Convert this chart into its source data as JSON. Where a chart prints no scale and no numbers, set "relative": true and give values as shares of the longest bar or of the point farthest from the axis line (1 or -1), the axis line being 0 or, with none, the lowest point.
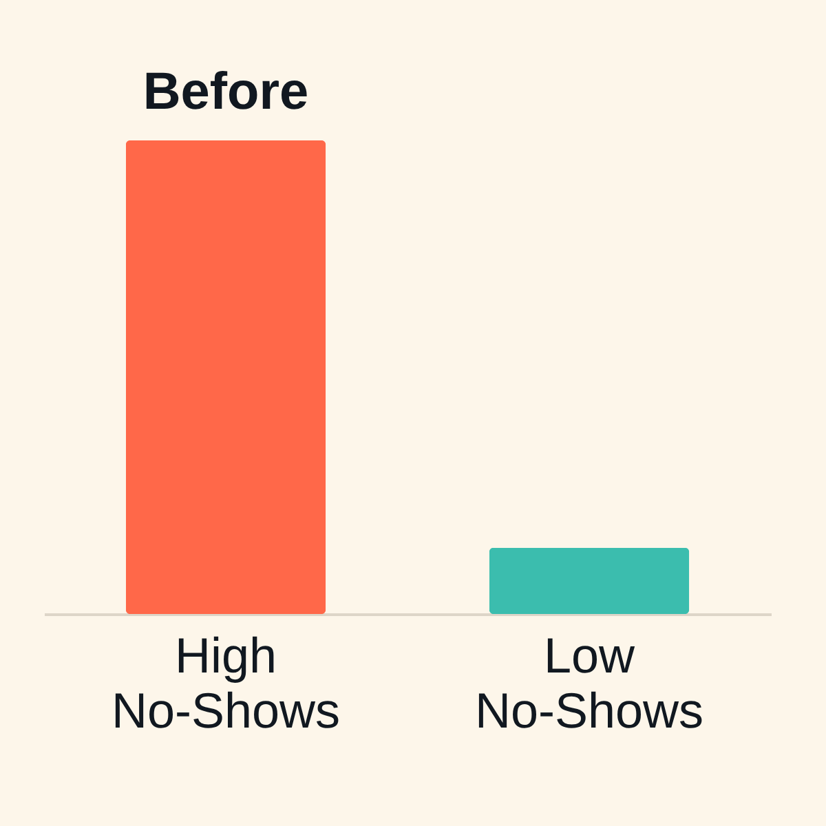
{
  "chart_data": {
    "type": "bar",
    "relative": true,
    "categories": [
      "High No-Shows",
      "Low No-Shows"
    ],
    "series": [
      {
        "name": "Before",
        "color": "#ff6849",
        "values": [
          1,
          null
        ]
      },
      {
        "color": "#3bbdae",
        "values": [
          null,
          0.14
        ]
      }
    ]
  }
}
